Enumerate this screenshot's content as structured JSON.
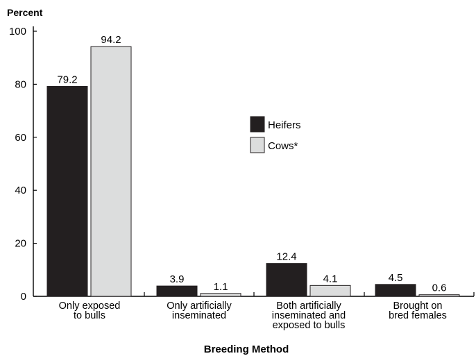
{
  "chart_data": {
    "type": "bar",
    "title": "",
    "ylabel": "Percent",
    "xlabel": "Breeding Method",
    "ylim": [
      0,
      100
    ],
    "yticks": [
      0,
      20,
      40,
      60,
      80,
      100
    ],
    "grid": false,
    "legend_position": "center",
    "categories": [
      [
        "Only exposed",
        "to bulls"
      ],
      [
        "Only artificially",
        "inseminated"
      ],
      [
        "Both artificially",
        "inseminated and",
        "exposed to bulls"
      ],
      [
        "Brought on",
        "bred females"
      ]
    ],
    "series": [
      {
        "name": "Heifers",
        "color": "#231f20",
        "values": [
          79.2,
          3.9,
          12.4,
          4.5
        ],
        "labels": [
          "79.2",
          "3.9",
          "12.4",
          "4.5"
        ]
      },
      {
        "name": "Cows*",
        "color": "#dcdddd",
        "values": [
          94.2,
          1.1,
          4.1,
          0.6
        ],
        "labels": [
          "94.2",
          "1.1",
          "4.1",
          "0.6"
        ]
      }
    ]
  }
}
